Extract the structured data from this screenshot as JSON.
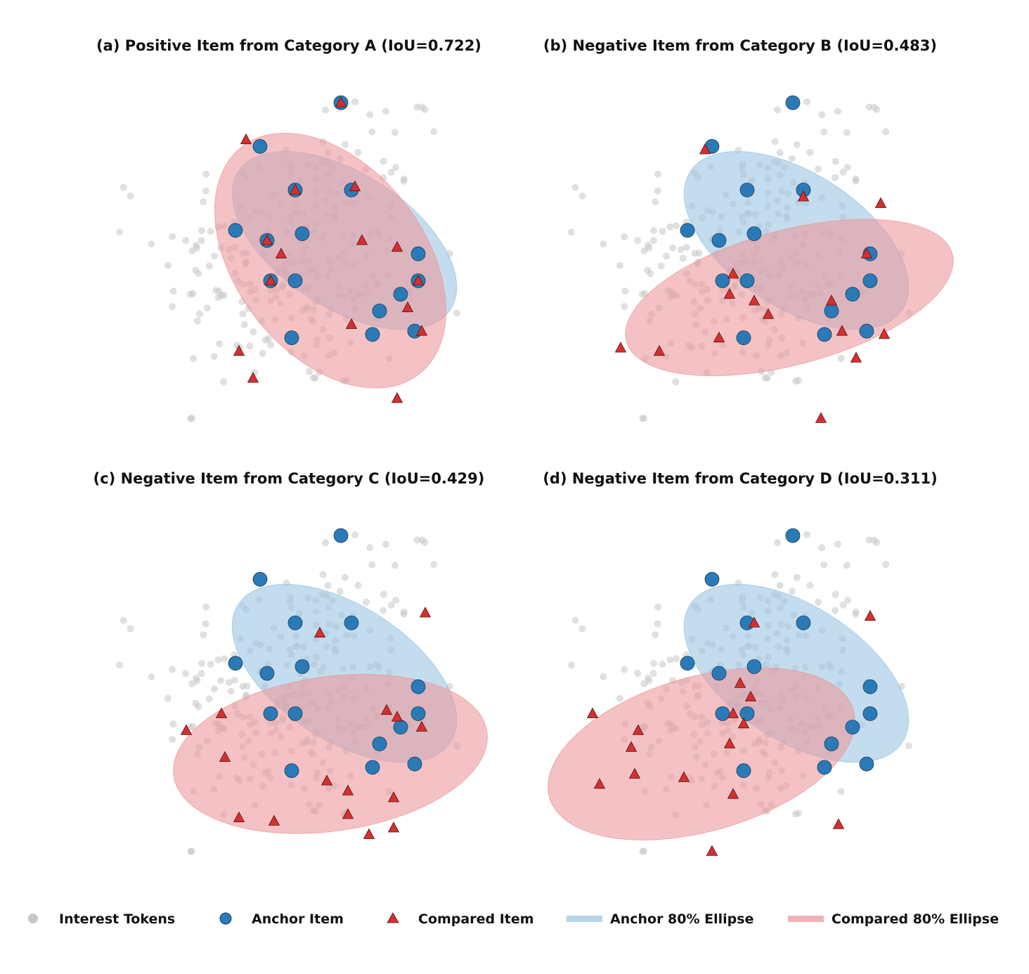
{
  "colors": {
    "token": "#c7c7c7",
    "anchor": "#2a7ab8",
    "compared": "#d62f2f",
    "anchor_ellipse": "#9ec7e4",
    "compared_ellipse": "#ec9a9c"
  },
  "legend": {
    "tokens": "Interest Tokens",
    "anchor": "Anchor Item",
    "compared": "Compared Item",
    "anchor_ellipse": "Anchor 80% Ellipse",
    "compared_ellipse": "Compared 80% Ellipse",
    "placement": "bottom"
  },
  "chart_data": [
    {
      "type": "scatter",
      "title": "(a) Positive Item from Category A (IoU=0.722)",
      "xlim": [
        0,
        100
      ],
      "ylim": [
        0,
        100
      ],
      "anchor_x": [
        65,
        42,
        52,
        68,
        35,
        44,
        54,
        87,
        45,
        52,
        87,
        82,
        76,
        86,
        51,
        74
      ],
      "anchor_y": [
        96,
        83,
        70,
        70,
        58,
        55,
        57,
        51,
        43,
        43,
        43,
        39,
        34,
        28,
        26,
        27
      ],
      "compared_x": [
        65,
        38,
        52,
        69,
        44,
        48,
        71,
        81,
        87,
        84,
        68,
        45,
        88,
        36,
        40,
        81
      ],
      "compared_y": [
        96,
        85,
        70,
        71,
        55,
        51,
        55,
        53,
        43,
        35,
        30,
        43,
        28,
        22,
        14,
        8
      ],
      "anchor_ellipse": {
        "center": [
          66,
          55
        ],
        "semi_axes": [
          36,
          20
        ],
        "angle_deg": -33
      },
      "compared_ellipse": {
        "center": [
          62,
          49
        ],
        "semi_axes": [
          41,
          28
        ],
        "angle_deg": -52
      }
    },
    {
      "type": "scatter",
      "title": "(b) Negative Item from Category B (IoU=0.483)",
      "xlim": [
        0,
        100
      ],
      "ylim": [
        0,
        100
      ],
      "anchor_x": [
        65,
        42,
        52,
        68,
        35,
        44,
        54,
        87,
        45,
        52,
        87,
        82,
        76,
        86,
        51,
        74
      ],
      "anchor_y": [
        96,
        83,
        70,
        70,
        58,
        55,
        57,
        51,
        43,
        43,
        43,
        39,
        34,
        28,
        26,
        27
      ],
      "compared_x": [
        40,
        68,
        90,
        86,
        48,
        47,
        54,
        58,
        76,
        16,
        27,
        44,
        79,
        91,
        83,
        73
      ],
      "compared_y": [
        82,
        68,
        66,
        51,
        45,
        39,
        37,
        33,
        37,
        23,
        22,
        26,
        28,
        27,
        20,
        2
      ],
      "anchor_ellipse": {
        "center": [
          66,
          55
        ],
        "semi_axes": [
          36,
          20
        ],
        "angle_deg": -33
      },
      "compared_ellipse": {
        "center": [
          64,
          38
        ],
        "semi_axes": [
          48,
          20
        ],
        "angle_deg": 15
      }
    },
    {
      "type": "scatter",
      "title": "(c) Negative Item from Category C (IoU=0.429)",
      "xlim": [
        0,
        100
      ],
      "ylim": [
        0,
        100
      ],
      "anchor_x": [
        65,
        42,
        52,
        68,
        35,
        44,
        54,
        87,
        45,
        52,
        87,
        82,
        76,
        86,
        51,
        74
      ],
      "anchor_y": [
        96,
        83,
        70,
        70,
        58,
        55,
        57,
        51,
        43,
        43,
        43,
        39,
        34,
        28,
        26,
        27
      ],
      "compared_x": [
        89,
        59,
        78,
        81,
        88,
        31,
        21,
        32,
        61,
        67,
        80,
        67,
        46,
        36,
        73,
        80
      ],
      "compared_y": [
        73,
        67,
        44,
        42,
        39,
        43,
        38,
        30,
        23,
        20,
        18,
        13,
        11,
        12,
        7,
        9
      ],
      "anchor_ellipse": {
        "center": [
          66,
          55
        ],
        "semi_axes": [
          36,
          20
        ],
        "angle_deg": -33
      },
      "compared_ellipse": {
        "center": [
          62,
          31
        ],
        "semi_axes": [
          45,
          23
        ],
        "angle_deg": 8
      }
    },
    {
      "type": "scatter",
      "title": "(d) Negative Item from Category D (IoU=0.311)",
      "xlim": [
        0,
        100
      ],
      "ylim": [
        0,
        100
      ],
      "anchor_x": [
        65,
        42,
        52,
        68,
        35,
        44,
        54,
        87,
        45,
        52,
        87,
        82,
        76,
        86,
        51,
        74
      ],
      "anchor_y": [
        96,
        83,
        70,
        70,
        58,
        55,
        57,
        51,
        43,
        43,
        43,
        39,
        34,
        28,
        26,
        27
      ],
      "compared_x": [
        54,
        50,
        53,
        87,
        48,
        51,
        47,
        8,
        21,
        19,
        10,
        20,
        34,
        48,
        78,
        42
      ],
      "compared_y": [
        70,
        52,
        48,
        72,
        43,
        40,
        34,
        43,
        38,
        33,
        22,
        25,
        24,
        19,
        10,
        2
      ],
      "anchor_ellipse": {
        "center": [
          66,
          55
        ],
        "semi_axes": [
          36,
          20
        ],
        "angle_deg": -33
      },
      "compared_ellipse": {
        "center": [
          39,
          31
        ],
        "semi_axes": [
          45,
          23
        ],
        "angle_deg": 16
      }
    }
  ]
}
